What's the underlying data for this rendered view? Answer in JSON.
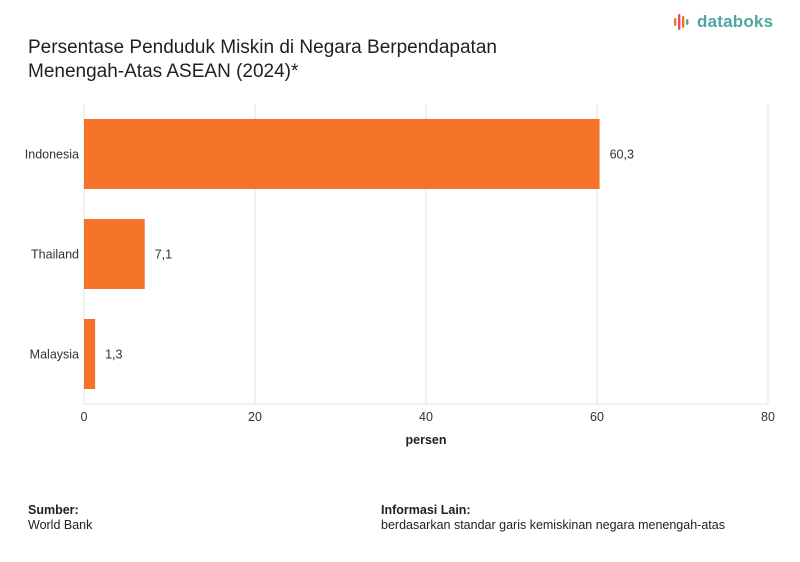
{
  "title_line1": "Persentase Penduduk Miskin di Negara Berpendapatan",
  "title_line2": "Menengah-Atas ASEAN (2024)*",
  "logo": {
    "text": "databoks",
    "icon": "databoks-bars-icon",
    "color": "#4aa8a0"
  },
  "footer": {
    "source_label": "Sumber:",
    "source_value": "World Bank",
    "info_label": "Informasi Lain:",
    "info_value": "berdasarkan standar garis kemiskinan negara menengah-atas"
  },
  "chart_data": {
    "type": "bar",
    "orientation": "horizontal",
    "categories": [
      "Indonesia",
      "Thailand",
      "Malaysia"
    ],
    "values": [
      60.3,
      7.1,
      1.3
    ],
    "value_labels": [
      "60,3",
      "7,1",
      "1,3"
    ],
    "xlabel": "persen",
    "xlim": [
      0,
      80
    ],
    "xticks": [
      0,
      20,
      40,
      60,
      80
    ],
    "grid": "vertical",
    "bar_color": "#f47328"
  }
}
